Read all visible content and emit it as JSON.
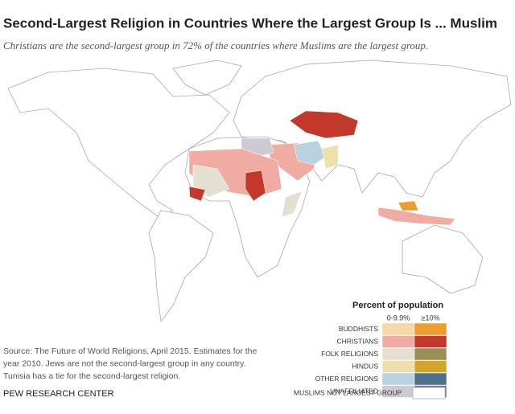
{
  "header": {
    "title": "Second-Largest Religion in Countries Where the Largest Group Is ... Muslim",
    "subtitle": "Christians are the second-largest group in 72% of the countries where Muslims are the largest group."
  },
  "legend": {
    "title": "Percent of population",
    "columns": [
      "0-9.9%",
      "≥10%"
    ],
    "rows": [
      {
        "label": "BUDDHISTS",
        "colors": [
          "#f7d6a7",
          "#eb9d2f"
        ]
      },
      {
        "label": "CHRISTIANS",
        "colors": [
          "#f0aca2",
          "#c2392b"
        ]
      },
      {
        "label": "FOLK RELIGIONS",
        "colors": [
          "#e3e0d2",
          "#9a8f54"
        ]
      },
      {
        "label": "HINDUS",
        "colors": [
          "#efdfaa",
          "#d3a62a"
        ]
      },
      {
        "label": "OTHER RELIGIONS",
        "colors": [
          "#b9d2e0",
          "#4e6f8d"
        ]
      },
      {
        "label": "UNAFFILIATED",
        "colors": [
          "#cfc9d4",
          "#7e7189"
        ]
      }
    ],
    "other": {
      "label": "MUSLIMS NOT LARGEST GROUP",
      "color": "#ffffff"
    }
  },
  "source": [
    "Source: The Future of World Religions, April 2015. Estimates for the",
    "year 2010. Jews are not the second-largest group in any country.",
    "Tunisia has a tie for the second-largest religion."
  ],
  "footer": "PEW RESEARCH CENTER"
}
